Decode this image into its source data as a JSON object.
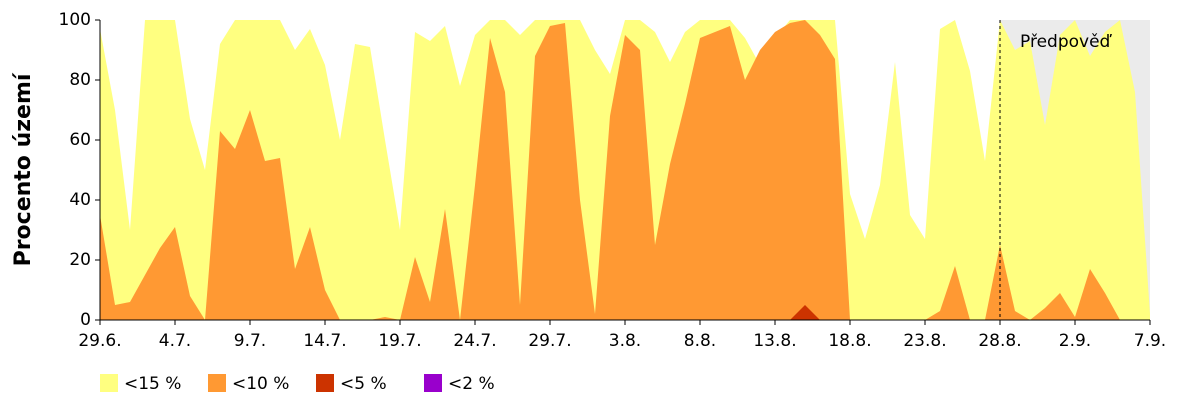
{
  "chart_data": {
    "type": "area",
    "y_label": "Procento území",
    "categories": [
      "29.6.",
      null,
      null,
      null,
      null,
      "4.7.",
      null,
      null,
      null,
      null,
      "9.7.",
      null,
      null,
      null,
      null,
      "14.7.",
      null,
      null,
      null,
      null,
      "19.7.",
      null,
      null,
      null,
      null,
      "24.7.",
      null,
      null,
      null,
      null,
      "29.7.",
      null,
      null,
      null,
      null,
      "3.8.",
      null,
      null,
      null,
      null,
      "8.8.",
      null,
      null,
      null,
      null,
      "13.8.",
      null,
      null,
      null,
      null,
      "18.8.",
      null,
      null,
      null,
      null,
      "23.8.",
      null,
      null,
      null,
      null,
      "28.8.",
      null,
      null,
      null,
      null,
      "2.9.",
      null,
      null,
      null,
      null,
      "7.9."
    ],
    "series": [
      {
        "name": "<15 %",
        "color": "#ffff80",
        "values": [
          97,
          70,
          30,
          100,
          100,
          100,
          67,
          50,
          92,
          100,
          100,
          100,
          100,
          90,
          97,
          85,
          60,
          92,
          91,
          60,
          30,
          96,
          93,
          98,
          78,
          95,
          100,
          100,
          95,
          100,
          100,
          100,
          100,
          90,
          82,
          100,
          100,
          96,
          86,
          96,
          100,
          100,
          100,
          94,
          85,
          94,
          100,
          100,
          100,
          100,
          42,
          27,
          45,
          86,
          35,
          27,
          97,
          100,
          83,
          53,
          100,
          90,
          93,
          65,
          95,
          100,
          88,
          96,
          100,
          76,
          2
        ]
      },
      {
        "name": "<10 %",
        "color": "#ff9933",
        "values": [
          35,
          5,
          6,
          15,
          24,
          31,
          8,
          0,
          63,
          57,
          70,
          53,
          54,
          17,
          31,
          10,
          0,
          0,
          0,
          1,
          0,
          21,
          6,
          37,
          0,
          45,
          94,
          76,
          5,
          88,
          98,
          99,
          40,
          2,
          68,
          95,
          90,
          25,
          52,
          72,
          94,
          96,
          98,
          80,
          90,
          96,
          99,
          100,
          95,
          87,
          0,
          0,
          0,
          0,
          0,
          0,
          3,
          18,
          0,
          0,
          25,
          3,
          0,
          4,
          9,
          1,
          17,
          9,
          0,
          0,
          0
        ]
      },
      {
        "name": "<5 %",
        "color": "#cc3300",
        "values": [
          0,
          0,
          0,
          0,
          0,
          0,
          0,
          0,
          0,
          0,
          0,
          0,
          0,
          0,
          0,
          0,
          0,
          0,
          0,
          0,
          0,
          0,
          0,
          0,
          0,
          0,
          0,
          0,
          0,
          0,
          0,
          0,
          0,
          0,
          0,
          0,
          0,
          0,
          0,
          0,
          0,
          0,
          0,
          0,
          0,
          0,
          0,
          5,
          0,
          0,
          0,
          0,
          0,
          0,
          0,
          0,
          0,
          0,
          0,
          0,
          0,
          0,
          0,
          0,
          0,
          0,
          0,
          0,
          0,
          0,
          0
        ]
      },
      {
        "name": "<2 %",
        "color": "#9900cc",
        "values": [
          0,
          0,
          0,
          0,
          0,
          0,
          0,
          0,
          0,
          0,
          0,
          0,
          0,
          0,
          0,
          0,
          0,
          0,
          0,
          0,
          0,
          0,
          0,
          0,
          0,
          0,
          0,
          0,
          0,
          0,
          0,
          0,
          0,
          0,
          0,
          0,
          0,
          0,
          0,
          0,
          0,
          0,
          0,
          0,
          0,
          0,
          0,
          0,
          0,
          0,
          0,
          0,
          0,
          0,
          0,
          0,
          0,
          0,
          0,
          0,
          0,
          0,
          0,
          0,
          0,
          0,
          0,
          0,
          0,
          0,
          0
        ]
      }
    ],
    "ylim": [
      0,
      100
    ],
    "yticks": [
      0,
      20,
      40,
      60,
      80,
      100
    ],
    "forecast": {
      "x": "28.8.",
      "text": "Předpověď",
      "color": "#ebebeb"
    }
  }
}
